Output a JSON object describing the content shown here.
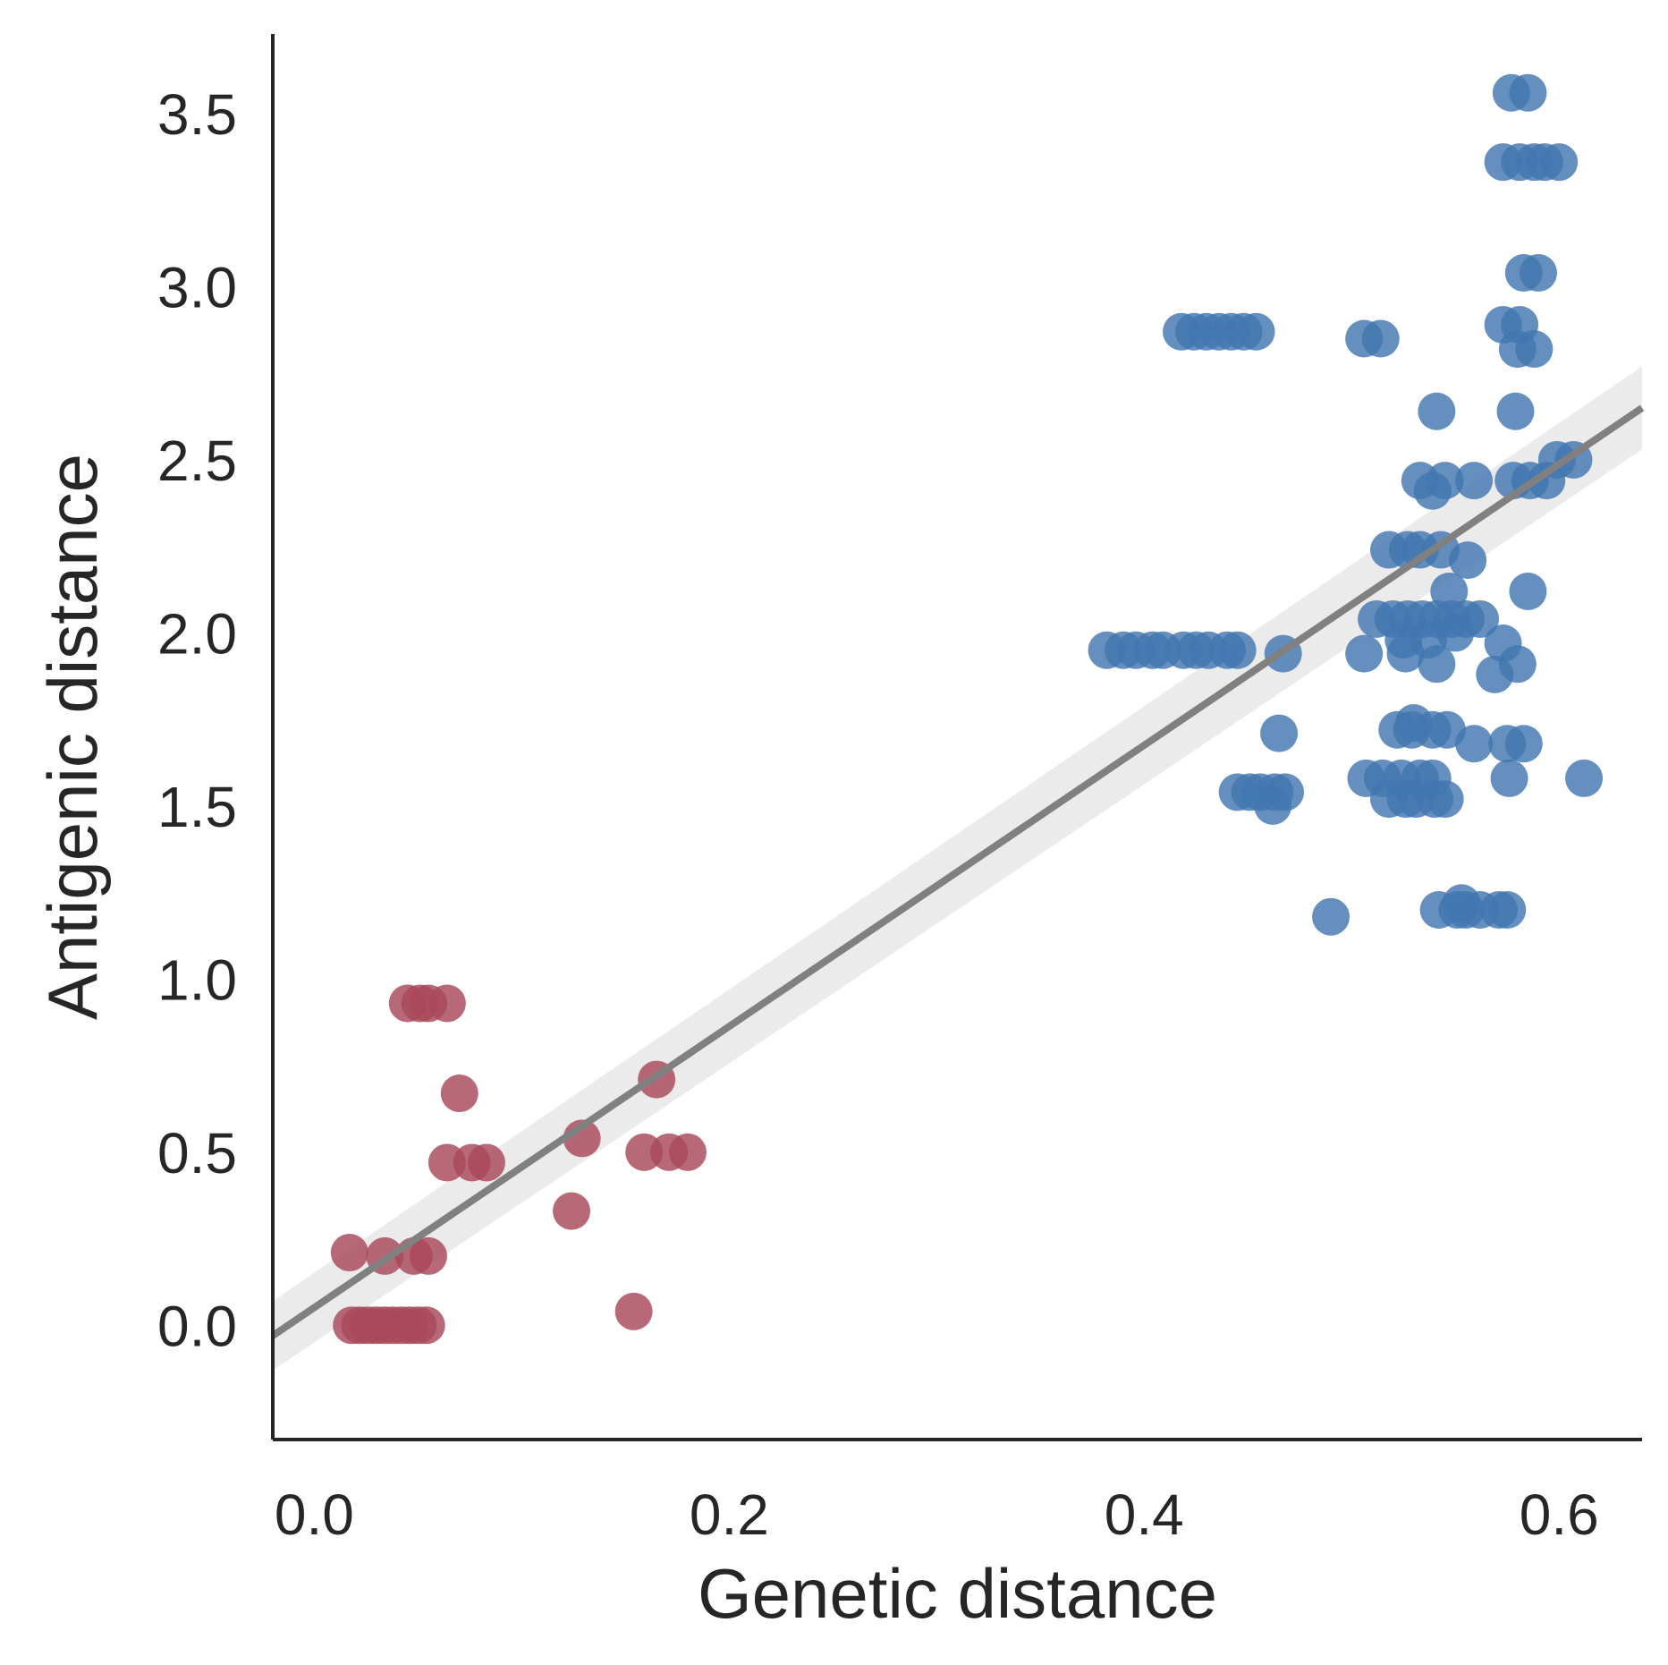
{
  "chart_data": {
    "type": "scatter",
    "title": "",
    "xlabel": "Genetic distance",
    "ylabel": "Antigenic distance",
    "xlim": [
      -0.02,
      0.64
    ],
    "ylim": [
      -0.33,
      3.73
    ],
    "xticks": [
      0.0,
      0.2,
      0.4,
      0.6
    ],
    "xtick_labels": [
      "0.0",
      "0.2",
      "0.4",
      "0.6"
    ],
    "yticks": [
      0.0,
      0.5,
      1.0,
      1.5,
      2.0,
      2.5,
      3.0,
      3.5
    ],
    "ytick_labels": [
      "0.0",
      "0.5",
      "1.0",
      "1.5",
      "2.0",
      "2.5",
      "3.0",
      "3.5"
    ],
    "grid": false,
    "legend": "none",
    "regression": {
      "line_color": "#808080",
      "band_color": "#ebebeb",
      "x": [
        -0.02,
        0.64
      ],
      "y": [
        -0.03,
        2.65
      ],
      "band_lower": [
        -0.13,
        2.53
      ],
      "band_upper": [
        0.07,
        2.77
      ]
    },
    "series": [
      {
        "color": "#a8485a",
        "points": [
          [
            0.018,
            0.0
          ],
          [
            0.022,
            0.0
          ],
          [
            0.026,
            0.0
          ],
          [
            0.03,
            0.0
          ],
          [
            0.034,
            0.0
          ],
          [
            0.038,
            0.0
          ],
          [
            0.042,
            0.0
          ],
          [
            0.046,
            0.0
          ],
          [
            0.05,
            0.0
          ],
          [
            0.054,
            0.0
          ],
          [
            0.017,
            0.21
          ],
          [
            0.034,
            0.2
          ],
          [
            0.048,
            0.2
          ],
          [
            0.055,
            0.2
          ],
          [
            0.045,
            0.93
          ],
          [
            0.051,
            0.93
          ],
          [
            0.055,
            0.93
          ],
          [
            0.064,
            0.93
          ],
          [
            0.07,
            0.67
          ],
          [
            0.064,
            0.47
          ],
          [
            0.076,
            0.47
          ],
          [
            0.083,
            0.47
          ],
          [
            0.129,
            0.54
          ],
          [
            0.124,
            0.33
          ],
          [
            0.154,
            0.04
          ],
          [
            0.165,
            0.71
          ],
          [
            0.159,
            0.5
          ],
          [
            0.171,
            0.5
          ],
          [
            0.18,
            0.5
          ]
        ]
      },
      {
        "color": "#4276b0",
        "points": [
          [
            0.577,
            3.56
          ],
          [
            0.585,
            3.56
          ],
          [
            0.573,
            3.36
          ],
          [
            0.581,
            3.36
          ],
          [
            0.588,
            3.36
          ],
          [
            0.593,
            3.36
          ],
          [
            0.6,
            3.36
          ],
          [
            0.583,
            3.04
          ],
          [
            0.59,
            3.04
          ],
          [
            0.418,
            2.87
          ],
          [
            0.424,
            2.87
          ],
          [
            0.43,
            2.87
          ],
          [
            0.436,
            2.87
          ],
          [
            0.442,
            2.87
          ],
          [
            0.448,
            2.87
          ],
          [
            0.454,
            2.87
          ],
          [
            0.506,
            2.85
          ],
          [
            0.514,
            2.85
          ],
          [
            0.573,
            2.89
          ],
          [
            0.581,
            2.89
          ],
          [
            0.58,
            2.82
          ],
          [
            0.588,
            2.82
          ],
          [
            0.541,
            2.64
          ],
          [
            0.579,
            2.64
          ],
          [
            0.599,
            2.5
          ],
          [
            0.607,
            2.5
          ],
          [
            0.533,
            2.44
          ],
          [
            0.545,
            2.44
          ],
          [
            0.559,
            2.44
          ],
          [
            0.578,
            2.44
          ],
          [
            0.586,
            2.44
          ],
          [
            0.594,
            2.44
          ],
          [
            0.539,
            2.41
          ],
          [
            0.518,
            2.24
          ],
          [
            0.527,
            2.24
          ],
          [
            0.533,
            2.24
          ],
          [
            0.543,
            2.24
          ],
          [
            0.556,
            2.21
          ],
          [
            0.547,
            2.12
          ],
          [
            0.585,
            2.12
          ],
          [
            0.512,
            2.04
          ],
          [
            0.52,
            2.04
          ],
          [
            0.527,
            2.04
          ],
          [
            0.534,
            2.04
          ],
          [
            0.541,
            2.04
          ],
          [
            0.548,
            2.04
          ],
          [
            0.555,
            2.04
          ],
          [
            0.562,
            2.04
          ],
          [
            0.525,
            1.98
          ],
          [
            0.537,
            1.98
          ],
          [
            0.55,
            2.0
          ],
          [
            0.573,
            1.97
          ],
          [
            0.526,
            1.94
          ],
          [
            0.541,
            1.91
          ],
          [
            0.569,
            1.88
          ],
          [
            0.58,
            1.91
          ],
          [
            0.382,
            1.95
          ],
          [
            0.39,
            1.95
          ],
          [
            0.396,
            1.95
          ],
          [
            0.404,
            1.95
          ],
          [
            0.409,
            1.95
          ],
          [
            0.419,
            1.95
          ],
          [
            0.425,
            1.95
          ],
          [
            0.431,
            1.95
          ],
          [
            0.44,
            1.95
          ],
          [
            0.445,
            1.95
          ],
          [
            0.467,
            1.94
          ],
          [
            0.506,
            1.94
          ],
          [
            0.465,
            1.71
          ],
          [
            0.522,
            1.72
          ],
          [
            0.529,
            1.72
          ],
          [
            0.539,
            1.72
          ],
          [
            0.546,
            1.72
          ],
          [
            0.53,
            1.74
          ],
          [
            0.559,
            1.68
          ],
          [
            0.575,
            1.68
          ],
          [
            0.583,
            1.68
          ],
          [
            0.507,
            1.58
          ],
          [
            0.515,
            1.58
          ],
          [
            0.524,
            1.58
          ],
          [
            0.533,
            1.58
          ],
          [
            0.539,
            1.58
          ],
          [
            0.576,
            1.58
          ],
          [
            0.612,
            1.58
          ],
          [
            0.518,
            1.52
          ],
          [
            0.526,
            1.52
          ],
          [
            0.531,
            1.52
          ],
          [
            0.54,
            1.52
          ],
          [
            0.545,
            1.52
          ],
          [
            0.445,
            1.54
          ],
          [
            0.451,
            1.54
          ],
          [
            0.456,
            1.54
          ],
          [
            0.463,
            1.54
          ],
          [
            0.468,
            1.54
          ],
          [
            0.462,
            1.5
          ],
          [
            0.49,
            1.18
          ],
          [
            0.542,
            1.2
          ],
          [
            0.551,
            1.2
          ],
          [
            0.555,
            1.2
          ],
          [
            0.562,
            1.2
          ],
          [
            0.571,
            1.2
          ],
          [
            0.575,
            1.2
          ],
          [
            0.553,
            1.22
          ]
        ]
      }
    ]
  }
}
